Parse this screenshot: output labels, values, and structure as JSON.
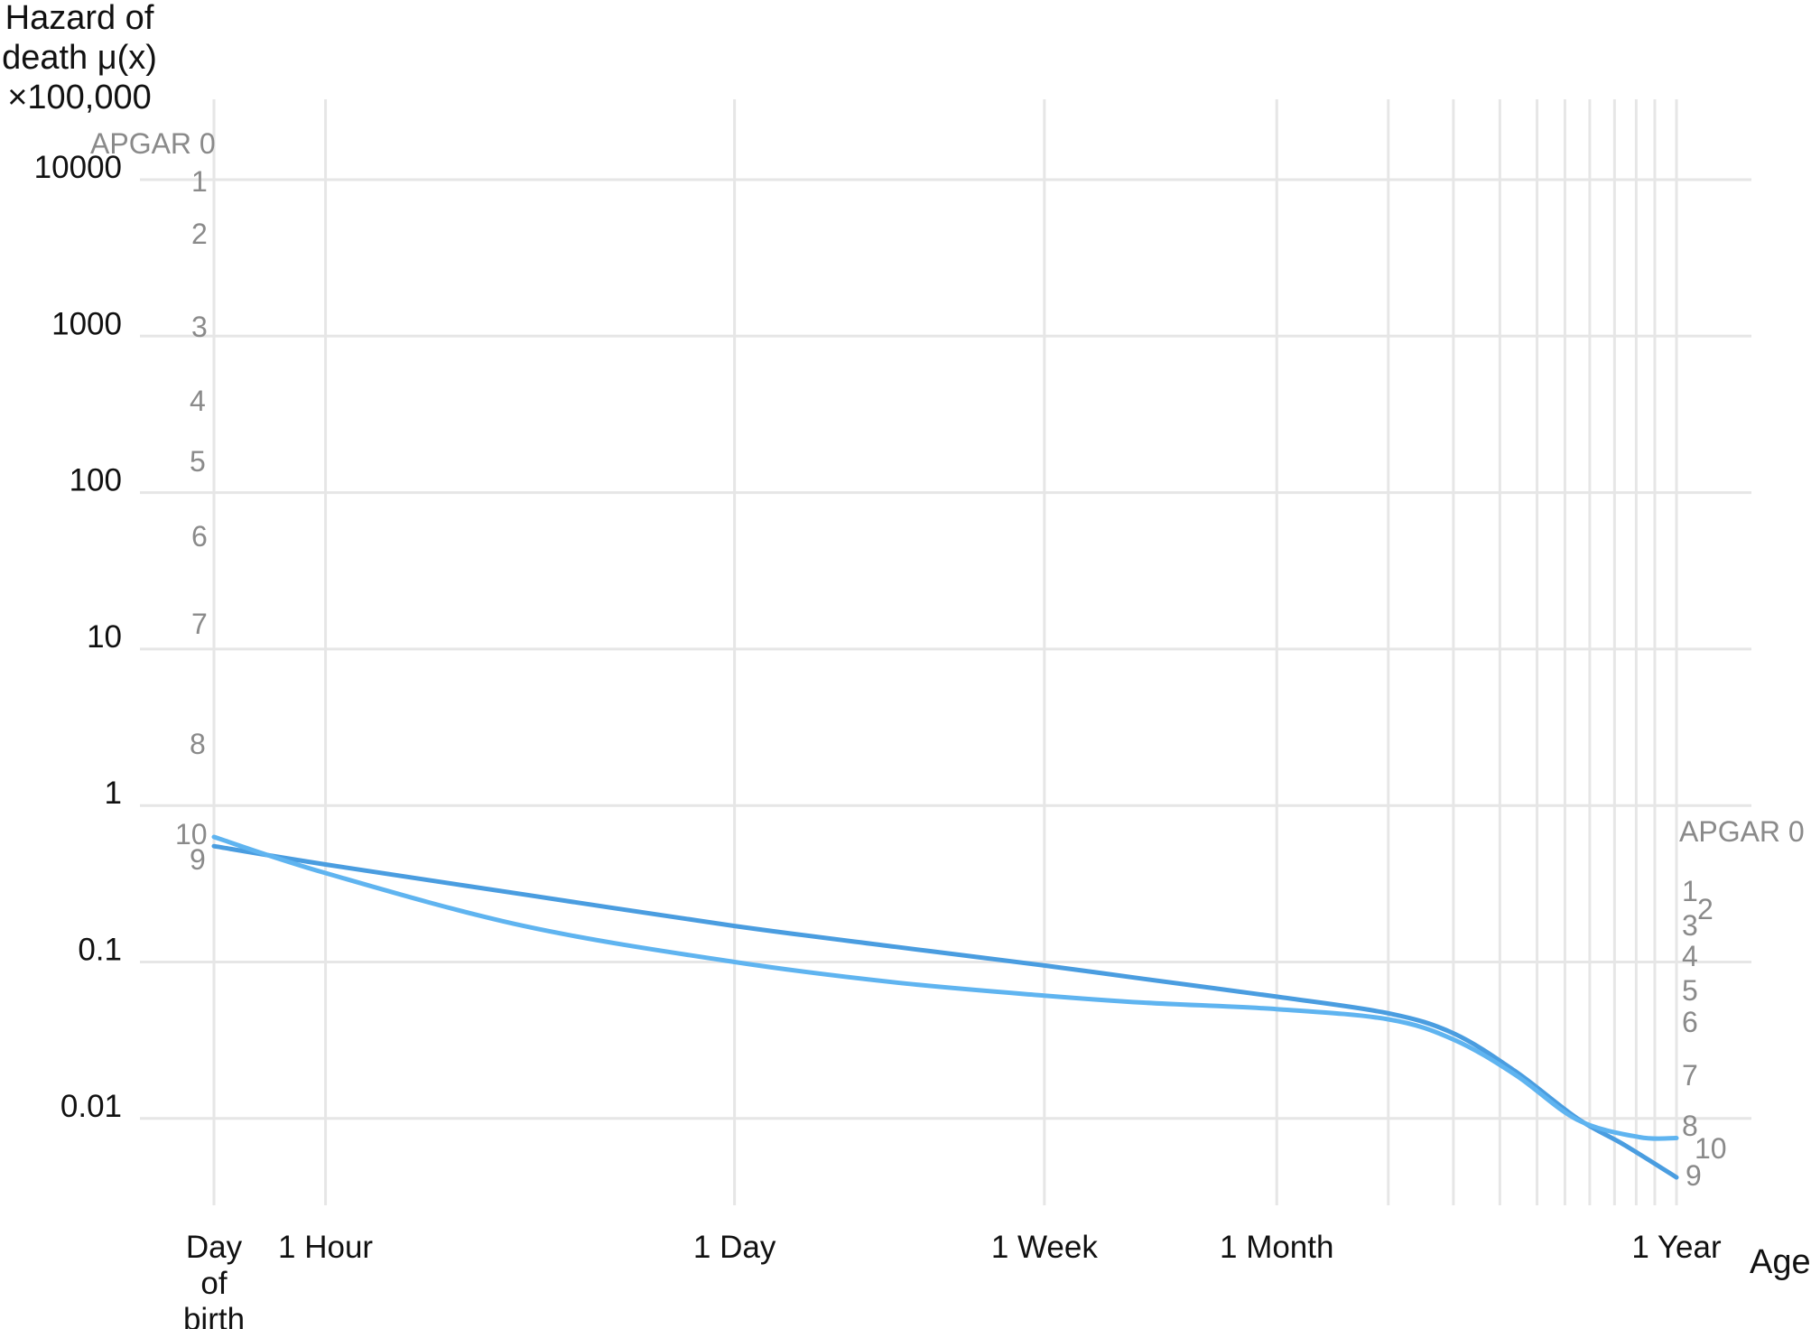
{
  "chart_data": {
    "type": "line",
    "title": "",
    "ylabel": "Hazard of death μ(x) ×100,000",
    "ylabel_lines": [
      "Hazard of",
      "death μ(x)",
      "×100,000"
    ],
    "xlabel": "Age",
    "y_scale": "log",
    "ylim": [
      0.002,
      30000
    ],
    "y_ticks": [
      {
        "value": 10000,
        "label": "10000"
      },
      {
        "value": 1000,
        "label": "1000"
      },
      {
        "value": 100,
        "label": "100"
      },
      {
        "value": 10,
        "label": "10"
      },
      {
        "value": 1,
        "label": "1"
      },
      {
        "value": 0.1,
        "label": "0.1"
      },
      {
        "value": 0.01,
        "label": "0.01"
      }
    ],
    "x_ticks": [
      {
        "value": 0,
        "label": "Day of birth",
        "lines": [
          "Day",
          "of",
          "birth"
        ]
      },
      {
        "value": 0.36,
        "label": "1 Hour"
      },
      {
        "value": 1.68,
        "label": "1 Day"
      },
      {
        "value": 2.68,
        "label": "1 Week"
      },
      {
        "value": 3.43,
        "label": "1 Month"
      },
      {
        "value": 4.72,
        "label": "1 Year"
      }
    ],
    "x_minor_gridlines": [
      3.79,
      4.0,
      4.15,
      4.27,
      4.36,
      4.44,
      4.52,
      4.59,
      4.65
    ],
    "grid": true,
    "legend": "none",
    "series": [
      {
        "name": "",
        "color": "#4a9de0",
        "x": [
          0.0,
          0.36,
          1.0,
          1.68,
          2.2,
          2.68,
          3.0,
          3.43,
          3.79,
          4.0,
          4.2,
          4.4,
          4.55,
          4.72
        ],
        "y": [
          0.55,
          0.42,
          0.27,
          0.17,
          0.125,
          0.095,
          0.078,
          0.06,
          0.047,
          0.035,
          0.02,
          0.01,
          0.0068,
          0.0042
        ]
      },
      {
        "name": "",
        "color": "#5fb4f0",
        "x": [
          0.0,
          0.36,
          1.0,
          1.68,
          2.2,
          2.68,
          3.0,
          3.43,
          3.79,
          4.0,
          4.2,
          4.4,
          4.6,
          4.72
        ],
        "y": [
          0.63,
          0.37,
          0.17,
          0.1,
          0.074,
          0.061,
          0.055,
          0.05,
          0.043,
          0.032,
          0.019,
          0.0098,
          0.0076,
          0.0075
        ]
      }
    ],
    "apgar_labels_left": [
      "APGAR 0",
      "1",
      "2",
      "3",
      "4",
      "5",
      "6",
      "7",
      "8",
      "10",
      "9"
    ],
    "apgar_labels_right": [
      "APGAR 0",
      "1",
      "2",
      "3",
      "4",
      "5",
      "6",
      "7",
      "8",
      "10",
      "9"
    ]
  }
}
